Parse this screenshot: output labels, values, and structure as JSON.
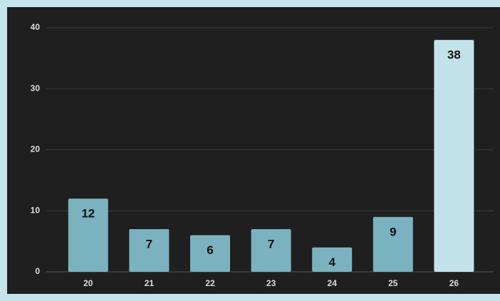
{
  "chart_data": {
    "type": "bar",
    "categories": [
      "20",
      "21",
      "22",
      "23",
      "24",
      "25",
      "26"
    ],
    "values": [
      12,
      7,
      6,
      7,
      4,
      9,
      38
    ],
    "colors": [
      "#7ab3bf",
      "#7ab3bf",
      "#7ab3bf",
      "#7ab3bf",
      "#7ab3bf",
      "#7ab3bf",
      "#c3e3ea"
    ],
    "ylim": [
      0,
      40
    ],
    "yticks": [
      0,
      10,
      20,
      30,
      40
    ],
    "grid": true,
    "data_labels": true
  }
}
